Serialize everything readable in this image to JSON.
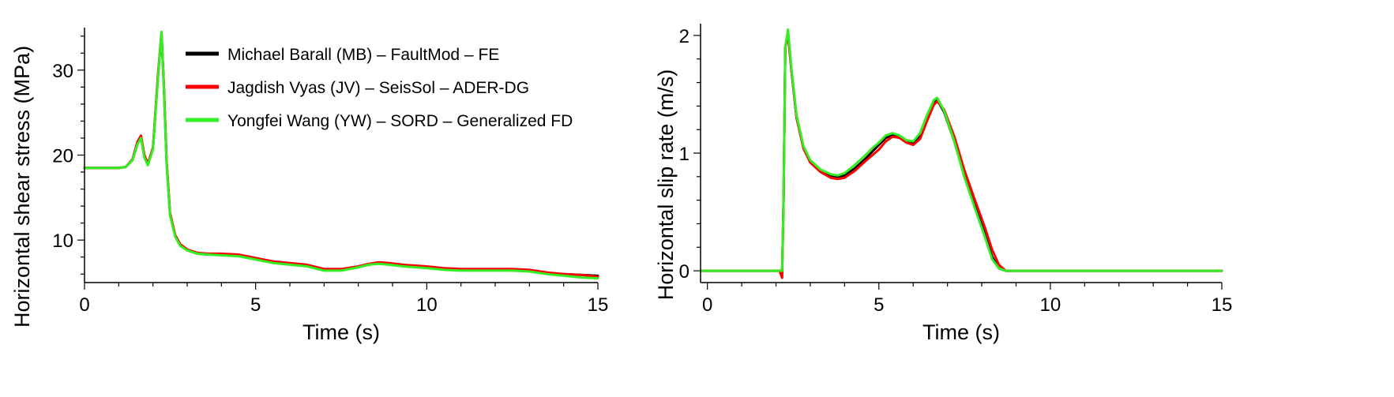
{
  "chart_data": [
    {
      "type": "line",
      "xlabel": "Time (s)",
      "ylabel": "Horizontal shear stress (MPa)",
      "xlim": [
        0,
        15
      ],
      "ylim": [
        5,
        35
      ],
      "xticks": [
        0,
        5,
        10,
        15
      ],
      "yticks": [
        10,
        20,
        30
      ],
      "grid": false,
      "legend_placement": "top-right",
      "series": [
        {
          "name": "Michael Barall (MB) – FaultMod – FE",
          "color": "#000000",
          "x": [
            0,
            1.0,
            1.2,
            1.4,
            1.55,
            1.65,
            1.75,
            1.85,
            2.0,
            2.15,
            2.25,
            2.32,
            2.4,
            2.5,
            2.65,
            2.8,
            3.0,
            3.3,
            3.6,
            4.0,
            4.5,
            5.0,
            5.5,
            6.0,
            6.5,
            7.0,
            7.5,
            8.0,
            8.3,
            8.6,
            8.9,
            9.3,
            10.0,
            10.5,
            11.0,
            11.5,
            12.0,
            12.5,
            13.0,
            13.5,
            14.0,
            14.5,
            15.0
          ],
          "y": [
            18.5,
            18.5,
            18.6,
            19.4,
            21.4,
            22.2,
            19.8,
            18.9,
            20.8,
            29.5,
            34.3,
            28.0,
            19.0,
            13.0,
            10.5,
            9.4,
            8.8,
            8.4,
            8.3,
            8.3,
            8.2,
            7.8,
            7.4,
            7.2,
            7.0,
            6.5,
            6.5,
            6.8,
            7.1,
            7.3,
            7.2,
            7.0,
            6.8,
            6.6,
            6.5,
            6.5,
            6.5,
            6.5,
            6.4,
            6.1,
            6.0,
            5.9,
            5.8
          ]
        },
        {
          "name": "Jagdish Vyas (JV) – SeisSol – ADER-DG",
          "color": "#ff0000",
          "x": [
            0,
            1.0,
            1.2,
            1.4,
            1.55,
            1.65,
            1.75,
            1.85,
            2.0,
            2.15,
            2.25,
            2.32,
            2.4,
            2.5,
            2.65,
            2.8,
            3.0,
            3.3,
            3.6,
            4.0,
            4.5,
            5.0,
            5.5,
            6.0,
            6.5,
            7.0,
            7.5,
            8.0,
            8.3,
            8.6,
            8.9,
            9.3,
            10.0,
            10.5,
            11.0,
            11.5,
            12.0,
            12.5,
            13.0,
            13.5,
            14.0,
            14.5,
            15.0
          ],
          "y": [
            18.5,
            18.5,
            18.6,
            19.5,
            21.6,
            22.3,
            20.0,
            19.0,
            20.9,
            29.7,
            34.4,
            28.2,
            19.2,
            13.2,
            10.6,
            9.5,
            8.9,
            8.5,
            8.4,
            8.4,
            8.3,
            7.9,
            7.5,
            7.3,
            7.1,
            6.6,
            6.6,
            6.9,
            7.2,
            7.4,
            7.3,
            7.1,
            6.9,
            6.7,
            6.6,
            6.6,
            6.6,
            6.6,
            6.5,
            6.2,
            6.0,
            5.9,
            5.7
          ]
        },
        {
          "name": "Yongfei Wang (YW) – SORD – Generalized FD",
          "color": "#33ee22",
          "x": [
            0,
            1.0,
            1.2,
            1.4,
            1.55,
            1.65,
            1.75,
            1.85,
            2.0,
            2.15,
            2.25,
            2.32,
            2.4,
            2.5,
            2.65,
            2.8,
            3.0,
            3.3,
            3.6,
            4.0,
            4.5,
            5.0,
            5.5,
            6.0,
            6.5,
            7.0,
            7.5,
            8.0,
            8.3,
            8.6,
            8.9,
            9.3,
            10.0,
            10.5,
            11.0,
            11.5,
            12.0,
            12.5,
            13.0,
            13.5,
            14.0,
            14.5,
            15.0
          ],
          "y": [
            18.5,
            18.5,
            18.6,
            19.4,
            21.3,
            22.0,
            19.7,
            18.8,
            20.7,
            29.3,
            34.5,
            27.8,
            18.8,
            12.9,
            10.4,
            9.3,
            8.8,
            8.4,
            8.3,
            8.2,
            8.1,
            7.7,
            7.3,
            7.1,
            6.9,
            6.4,
            6.4,
            6.8,
            7.1,
            7.2,
            7.1,
            6.9,
            6.7,
            6.5,
            6.4,
            6.4,
            6.4,
            6.4,
            6.3,
            6.0,
            5.8,
            5.6,
            5.5
          ]
        }
      ]
    },
    {
      "type": "line",
      "xlabel": "Time (s)",
      "ylabel": "Horizontal slip rate (m/s)",
      "xlim": [
        -0.2,
        15
      ],
      "ylim": [
        -0.1,
        2.1
      ],
      "xticks": [
        0,
        5,
        10,
        15
      ],
      "yticks": [
        0,
        1,
        2
      ],
      "grid": false,
      "series": [
        {
          "name": "Michael Barall (MB) – FaultMod – FE",
          "color": "#000000",
          "x": [
            -0.2,
            2.1,
            2.18,
            2.22,
            2.27,
            2.35,
            2.45,
            2.6,
            2.8,
            3.0,
            3.3,
            3.6,
            3.8,
            4.0,
            4.3,
            4.6,
            4.8,
            5.0,
            5.2,
            5.4,
            5.6,
            5.8,
            6.0,
            6.2,
            6.4,
            6.6,
            6.7,
            6.9,
            7.2,
            7.5,
            7.8,
            8.1,
            8.3,
            8.5,
            8.7,
            9.0,
            10.0,
            15.0
          ],
          "y": [
            0,
            0,
            0,
            0.6,
            1.9,
            2.03,
            1.7,
            1.3,
            1.05,
            0.93,
            0.85,
            0.81,
            0.8,
            0.81,
            0.87,
            0.95,
            1.01,
            1.07,
            1.13,
            1.15,
            1.14,
            1.1,
            1.09,
            1.15,
            1.3,
            1.43,
            1.45,
            1.35,
            1.1,
            0.8,
            0.55,
            0.3,
            0.12,
            0.02,
            0.0,
            0.0,
            0.0,
            0.0
          ]
        },
        {
          "name": "Jagdish Vyas (JV) – SeisSol – ADER-DG",
          "color": "#ff0000",
          "x": [
            -0.2,
            2.1,
            2.18,
            2.22,
            2.27,
            2.35,
            2.45,
            2.6,
            2.8,
            3.0,
            3.3,
            3.6,
            3.8,
            4.0,
            4.3,
            4.6,
            4.8,
            5.0,
            5.2,
            5.4,
            5.6,
            5.8,
            6.0,
            6.2,
            6.4,
            6.6,
            6.7,
            6.9,
            7.2,
            7.5,
            7.8,
            8.1,
            8.3,
            8.5,
            8.7,
            9.0,
            10.0,
            15.0
          ],
          "y": [
            0,
            0,
            -0.06,
            0.6,
            1.9,
            2.0,
            1.7,
            1.3,
            1.04,
            0.92,
            0.84,
            0.79,
            0.78,
            0.79,
            0.85,
            0.93,
            0.98,
            1.03,
            1.1,
            1.14,
            1.13,
            1.09,
            1.07,
            1.12,
            1.27,
            1.41,
            1.44,
            1.37,
            1.14,
            0.85,
            0.6,
            0.36,
            0.18,
            0.05,
            0.0,
            0.0,
            0.0,
            0.0
          ]
        },
        {
          "name": "Yongfei Wang (YW) – SORD – Generalized FD",
          "color": "#33ee22",
          "x": [
            -0.2,
            2.1,
            2.18,
            2.22,
            2.27,
            2.35,
            2.45,
            2.6,
            2.8,
            3.0,
            3.3,
            3.6,
            3.8,
            4.0,
            4.3,
            4.6,
            4.8,
            5.0,
            5.2,
            5.4,
            5.6,
            5.8,
            6.0,
            6.2,
            6.4,
            6.6,
            6.7,
            6.9,
            7.2,
            7.5,
            7.8,
            8.1,
            8.3,
            8.5,
            8.7,
            9.0,
            10.0,
            15.0
          ],
          "y": [
            0,
            0,
            0,
            0.6,
            1.9,
            2.05,
            1.72,
            1.32,
            1.06,
            0.94,
            0.86,
            0.82,
            0.81,
            0.83,
            0.9,
            0.98,
            1.04,
            1.09,
            1.15,
            1.17,
            1.15,
            1.11,
            1.1,
            1.17,
            1.32,
            1.45,
            1.47,
            1.36,
            1.1,
            0.79,
            0.53,
            0.28,
            0.1,
            0.02,
            0.0,
            0.0,
            0.0,
            0.0
          ]
        }
      ]
    }
  ]
}
